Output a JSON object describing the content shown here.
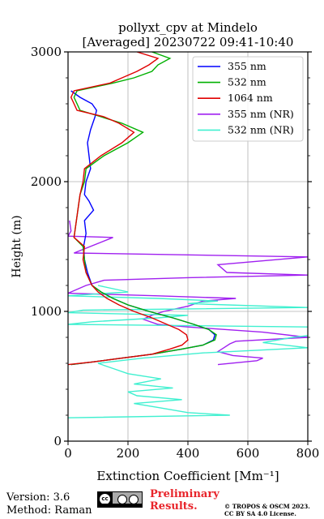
{
  "chart_data": {
    "type": "line",
    "title": "pollyxt_cpv at Mindelo",
    "subtitle": "[Averaged] 20230722 09:41-10:40",
    "xlabel": "Extinction Coefficient [Mm⁻¹]",
    "ylabel": "Height (m)",
    "xlim": [
      0,
      800
    ],
    "ylim": [
      0,
      3000
    ],
    "xticks": [
      0,
      200,
      400,
      600,
      800
    ],
    "yticks": [
      0,
      1000,
      2000,
      3000
    ],
    "grid": true,
    "legend_position": "top-right",
    "series": [
      {
        "name": "355 nm",
        "color": "#0000ff",
        "points": [
          [
            10,
            590
          ],
          [
            80,
            610
          ],
          [
            180,
            640
          ],
          [
            280,
            670
          ],
          [
            380,
            710
          ],
          [
            450,
            740
          ],
          [
            485,
            780
          ],
          [
            490,
            820
          ],
          [
            470,
            860
          ],
          [
            420,
            900
          ],
          [
            350,
            950
          ],
          [
            270,
            1000
          ],
          [
            200,
            1050
          ],
          [
            150,
            1100
          ],
          [
            110,
            1150
          ],
          [
            80,
            1200
          ],
          [
            65,
            1300
          ],
          [
            55,
            1400
          ],
          [
            52,
            1500
          ],
          [
            60,
            1600
          ],
          [
            55,
            1700
          ],
          [
            85,
            1780
          ],
          [
            70,
            1850
          ],
          [
            55,
            1900
          ],
          [
            60,
            2000
          ],
          [
            75,
            2100
          ],
          [
            70,
            2200
          ],
          [
            65,
            2300
          ],
          [
            75,
            2400
          ],
          [
            90,
            2500
          ],
          [
            95,
            2550
          ],
          [
            80,
            2600
          ],
          [
            40,
            2650
          ],
          [
            10,
            2700
          ]
        ]
      },
      {
        "name": "532 nm",
        "color": "#00b000",
        "points": [
          [
            10,
            590
          ],
          [
            80,
            610
          ],
          [
            180,
            640
          ],
          [
            280,
            670
          ],
          [
            380,
            710
          ],
          [
            450,
            740
          ],
          [
            490,
            780
          ],
          [
            495,
            820
          ],
          [
            470,
            860
          ],
          [
            420,
            900
          ],
          [
            350,
            950
          ],
          [
            270,
            1000
          ],
          [
            200,
            1050
          ],
          [
            150,
            1100
          ],
          [
            110,
            1150
          ],
          [
            80,
            1200
          ],
          [
            60,
            1300
          ],
          [
            55,
            1400
          ],
          [
            50,
            1500
          ],
          [
            20,
            1570
          ],
          [
            40,
            1900
          ],
          [
            55,
            2000
          ],
          [
            60,
            2100
          ],
          [
            120,
            2200
          ],
          [
            200,
            2300
          ],
          [
            250,
            2380
          ],
          [
            180,
            2450
          ],
          [
            110,
            2500
          ],
          [
            40,
            2550
          ],
          [
            20,
            2650
          ],
          [
            30,
            2700
          ],
          [
            150,
            2760
          ],
          [
            220,
            2800
          ],
          [
            280,
            2850
          ],
          [
            300,
            2900
          ],
          [
            340,
            2950
          ],
          [
            280,
            3000
          ]
        ]
      },
      {
        "name": "1064 nm",
        "color": "#e00000",
        "points": [
          [
            0,
            590
          ],
          [
            80,
            610
          ],
          [
            180,
            640
          ],
          [
            280,
            670
          ],
          [
            340,
            710
          ],
          [
            380,
            740
          ],
          [
            400,
            780
          ],
          [
            395,
            820
          ],
          [
            370,
            860
          ],
          [
            330,
            900
          ],
          [
            280,
            950
          ],
          [
            220,
            1000
          ],
          [
            170,
            1050
          ],
          [
            130,
            1100
          ],
          [
            100,
            1150
          ],
          [
            80,
            1200
          ],
          [
            60,
            1300
          ],
          [
            50,
            1400
          ],
          [
            55,
            1500
          ],
          [
            20,
            1570
          ],
          [
            40,
            1900
          ],
          [
            50,
            2000
          ],
          [
            55,
            2100
          ],
          [
            110,
            2200
          ],
          [
            180,
            2300
          ],
          [
            220,
            2380
          ],
          [
            170,
            2450
          ],
          [
            120,
            2500
          ],
          [
            30,
            2550
          ],
          [
            10,
            2650
          ],
          [
            20,
            2700
          ],
          [
            140,
            2760
          ],
          [
            180,
            2800
          ],
          [
            230,
            2850
          ],
          [
            270,
            2900
          ],
          [
            300,
            2950
          ],
          [
            230,
            3000
          ]
        ]
      },
      {
        "name": "355 nm (NR)",
        "color": "#a020f0",
        "points": [
          [
            500,
            590
          ],
          [
            630,
            620
          ],
          [
            650,
            640
          ],
          [
            550,
            660
          ],
          [
            500,
            690
          ],
          [
            520,
            720
          ],
          [
            540,
            750
          ],
          [
            560,
            770
          ],
          [
            800,
            800
          ],
          [
            650,
            840
          ],
          [
            400,
            880
          ],
          [
            300,
            900
          ],
          [
            250,
            940
          ],
          [
            280,
            970
          ],
          [
            320,
            1000
          ],
          [
            400,
            1040
          ],
          [
            450,
            1080
          ],
          [
            560,
            1100
          ],
          [
            300,
            1120
          ],
          [
            0,
            1140
          ],
          [
            60,
            1200
          ],
          [
            120,
            1240
          ],
          [
            400,
            1260
          ],
          [
            800,
            1280
          ],
          [
            530,
            1300
          ],
          [
            500,
            1360
          ],
          [
            800,
            1420
          ],
          [
            20,
            1450
          ],
          [
            150,
            1570
          ],
          [
            0,
            1580
          ],
          [
            10,
            1620
          ],
          [
            5,
            1700
          ]
        ]
      },
      {
        "name": "532 nm (NR)",
        "color": "#40f0d0",
        "points": [
          [
            0,
            180
          ],
          [
            540,
            200
          ],
          [
            400,
            220
          ],
          [
            300,
            260
          ],
          [
            220,
            290
          ],
          [
            380,
            320
          ],
          [
            230,
            350
          ],
          [
            200,
            380
          ],
          [
            350,
            410
          ],
          [
            220,
            440
          ],
          [
            310,
            480
          ],
          [
            200,
            520
          ],
          [
            150,
            560
          ],
          [
            100,
            600
          ],
          [
            250,
            640
          ],
          [
            450,
            680
          ],
          [
            800,
            720
          ],
          [
            650,
            760
          ],
          [
            750,
            800
          ],
          [
            900,
            840
          ],
          [
            800,
            880
          ],
          [
            0,
            900
          ],
          [
            80,
            920
          ],
          [
            300,
            950
          ],
          [
            400,
            970
          ],
          [
            0,
            990
          ],
          [
            50,
            1010
          ],
          [
            800,
            1030
          ],
          [
            400,
            1060
          ],
          [
            500,
            1080
          ],
          [
            300,
            1100
          ],
          [
            0,
            1120
          ],
          [
            200,
            1150
          ],
          [
            100,
            1200
          ]
        ]
      }
    ]
  },
  "footer": {
    "version": "Version: 3.6",
    "method": "Method: Raman",
    "preliminary_line1": "Preliminary",
    "preliminary_line2": "Results.",
    "copyright_line1": "© TROPOS & OSCM 2023.",
    "copyright_line2": "CC BY SA 4.0 License.",
    "license_badge": "cc by sa"
  }
}
